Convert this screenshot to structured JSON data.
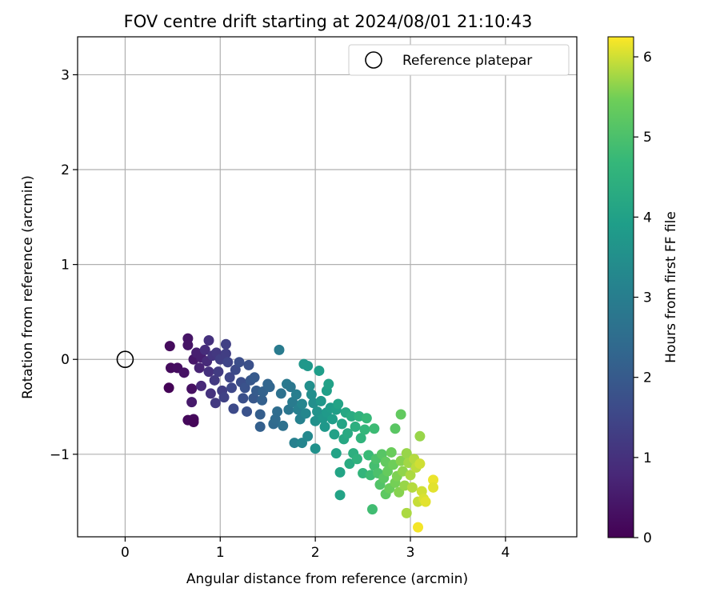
{
  "chart_data": {
    "type": "scatter",
    "title": "FOV centre drift starting at 2024/08/01 21:10:43",
    "xlabel": "Angular distance from reference (arcmin)",
    "ylabel": "Rotation from reference (arcmin)",
    "xlim": [
      -0.5,
      4.75
    ],
    "ylim": [
      -1.87,
      3.4
    ],
    "xticks": [
      0,
      1,
      2,
      3,
      4
    ],
    "xtick_labels": [
      "0",
      "1",
      "2",
      "3",
      "4"
    ],
    "yticks": [
      -1,
      0,
      1,
      2,
      3
    ],
    "ytick_labels": [
      "−1",
      "0",
      "1",
      "2",
      "3"
    ],
    "grid": true,
    "legend": {
      "placement": "top-right",
      "entries": [
        "Reference platepar"
      ]
    },
    "reference": {
      "label": "Reference platepar",
      "x": 0,
      "y": 0,
      "marker": "open-circle",
      "color": "#000000"
    },
    "colorbar": {
      "label": "Hours from first FF file",
      "range": [
        0,
        6.25
      ],
      "ticks": [
        0,
        1,
        2,
        3,
        4,
        5,
        6
      ],
      "tick_labels": [
        "0",
        "1",
        "2",
        "3",
        "4",
        "5",
        "6"
      ],
      "colormap": "viridis"
    },
    "series": [
      {
        "color_by": "hours",
        "points": [
          [
            0.46,
            -0.3,
            0.05
          ],
          [
            0.47,
            0.14,
            0.2
          ],
          [
            0.48,
            -0.09,
            0.2
          ],
          [
            0.55,
            -0.09,
            0.25
          ],
          [
            0.62,
            -0.14,
            0.35
          ],
          [
            0.66,
            0.22,
            0.4
          ],
          [
            0.66,
            0.15,
            0.4
          ],
          [
            0.66,
            -0.64,
            0.15
          ],
          [
            0.7,
            -0.31,
            0.3
          ],
          [
            0.72,
            0.0,
            0.45
          ],
          [
            0.72,
            -0.63,
            0.2
          ],
          [
            0.72,
            -0.66,
            0.1
          ],
          [
            0.7,
            -0.45,
            0.5
          ],
          [
            0.75,
            0.07,
            0.6
          ],
          [
            0.78,
            -0.09,
            0.7
          ],
          [
            0.8,
            -0.28,
            0.8
          ],
          [
            0.8,
            0.02,
            0.6
          ],
          [
            0.84,
            0.1,
            0.9
          ],
          [
            0.86,
            -0.02,
            0.85
          ],
          [
            0.88,
            -0.13,
            1.0
          ],
          [
            0.88,
            0.2,
            1.0
          ],
          [
            0.9,
            -0.36,
            1.05
          ],
          [
            0.92,
            0.04,
            1.1
          ],
          [
            0.94,
            -0.22,
            1.2
          ],
          [
            0.95,
            -0.46,
            1.2
          ],
          [
            0.96,
            0.07,
            1.15
          ],
          [
            0.98,
            -0.13,
            1.25
          ],
          [
            1.0,
            0.0,
            1.3
          ],
          [
            1.02,
            -0.33,
            1.3
          ],
          [
            1.04,
            -0.4,
            1.4
          ],
          [
            1.06,
            0.06,
            1.3
          ],
          [
            1.06,
            0.16,
            1.35
          ],
          [
            1.08,
            -0.03,
            1.45
          ],
          [
            1.1,
            -0.19,
            1.5
          ],
          [
            1.12,
            -0.3,
            1.55
          ],
          [
            1.14,
            -0.52,
            1.6
          ],
          [
            1.16,
            -0.11,
            1.6
          ],
          [
            1.2,
            -0.03,
            1.7
          ],
          [
            1.22,
            -0.24,
            1.7
          ],
          [
            1.24,
            -0.41,
            1.75
          ],
          [
            1.26,
            -0.3,
            1.8
          ],
          [
            1.28,
            -0.55,
            1.8
          ],
          [
            1.3,
            -0.06,
            1.75
          ],
          [
            1.32,
            -0.22,
            1.9
          ],
          [
            1.35,
            -0.41,
            1.95
          ],
          [
            1.36,
            -0.19,
            2.0
          ],
          [
            1.38,
            -0.33,
            2.05
          ],
          [
            1.42,
            -0.58,
            2.1
          ],
          [
            1.42,
            -0.71,
            2.15
          ],
          [
            1.44,
            -0.43,
            2.15
          ],
          [
            1.45,
            -0.34,
            2.2
          ],
          [
            1.5,
            -0.26,
            2.3
          ],
          [
            1.52,
            -0.29,
            2.3
          ],
          [
            1.56,
            -0.68,
            2.4
          ],
          [
            1.58,
            -0.63,
            2.45
          ],
          [
            1.6,
            -0.55,
            2.5
          ],
          [
            1.62,
            0.1,
            2.9
          ],
          [
            1.64,
            -0.36,
            2.6
          ],
          [
            1.66,
            -0.7,
            2.6
          ],
          [
            1.7,
            -0.26,
            2.85
          ],
          [
            1.72,
            -0.53,
            2.75
          ],
          [
            1.74,
            -0.29,
            2.8
          ],
          [
            1.76,
            -0.45,
            2.9
          ],
          [
            1.78,
            -0.88,
            3.05
          ],
          [
            1.8,
            -0.37,
            3.0
          ],
          [
            1.82,
            -0.53,
            3.05
          ],
          [
            1.84,
            -0.63,
            3.1
          ],
          [
            1.86,
            -0.88,
            3.2
          ],
          [
            1.86,
            -0.47,
            3.2
          ],
          [
            1.88,
            -0.05,
            3.7
          ],
          [
            1.9,
            -0.57,
            3.25
          ],
          [
            1.92,
            -0.81,
            3.3
          ],
          [
            1.92,
            -0.07,
            3.75
          ],
          [
            1.94,
            -0.28,
            3.5
          ],
          [
            1.96,
            -0.37,
            3.45
          ],
          [
            1.98,
            -0.46,
            3.5
          ],
          [
            2.0,
            -0.94,
            3.55
          ],
          [
            2.0,
            -0.65,
            3.55
          ],
          [
            2.02,
            -0.55,
            3.6
          ],
          [
            2.04,
            -0.12,
            3.9
          ],
          [
            2.06,
            -0.44,
            3.7
          ],
          [
            2.08,
            -0.62,
            3.7
          ],
          [
            2.1,
            -0.71,
            3.75
          ],
          [
            2.12,
            -0.33,
            3.95
          ],
          [
            2.12,
            -0.56,
            3.8
          ],
          [
            2.14,
            -0.26,
            4.0
          ],
          [
            2.16,
            -0.51,
            3.85
          ],
          [
            2.18,
            -0.63,
            3.9
          ],
          [
            2.2,
            -0.79,
            4.0
          ],
          [
            2.22,
            -0.99,
            4.05
          ],
          [
            2.22,
            -0.53,
            3.95
          ],
          [
            2.24,
            -0.47,
            4.05
          ],
          [
            2.26,
            -1.43,
            4.05
          ],
          [
            2.26,
            -1.19,
            4.1
          ],
          [
            2.28,
            -0.68,
            4.1
          ],
          [
            2.3,
            -0.84,
            4.2
          ],
          [
            2.32,
            -0.56,
            4.2
          ],
          [
            2.34,
            -0.78,
            4.25
          ],
          [
            2.36,
            -1.1,
            4.3
          ],
          [
            2.38,
            -0.6,
            4.3
          ],
          [
            2.4,
            -0.99,
            4.4
          ],
          [
            2.42,
            -0.71,
            4.4
          ],
          [
            2.44,
            -1.05,
            4.5
          ],
          [
            2.46,
            -0.6,
            4.5
          ],
          [
            2.48,
            -0.83,
            4.55
          ],
          [
            2.5,
            -1.2,
            4.6
          ],
          [
            2.52,
            -0.74,
            4.65
          ],
          [
            2.54,
            -0.62,
            4.7
          ],
          [
            2.56,
            -1.01,
            4.75
          ],
          [
            2.58,
            -1.22,
            4.8
          ],
          [
            2.6,
            -1.58,
            4.85
          ],
          [
            2.62,
            -0.73,
            4.8
          ],
          [
            2.62,
            -1.12,
            4.9
          ],
          [
            2.64,
            -1.05,
            5.0
          ],
          [
            2.66,
            -1.2,
            5.0
          ],
          [
            2.68,
            -1.32,
            5.1
          ],
          [
            2.7,
            -1.0,
            5.15
          ],
          [
            2.72,
            -1.25,
            5.2
          ],
          [
            2.74,
            -1.42,
            5.25
          ],
          [
            2.74,
            -1.08,
            5.3
          ],
          [
            2.76,
            -1.18,
            5.35
          ],
          [
            2.78,
            -1.36,
            5.4
          ],
          [
            2.8,
            -0.98,
            5.4
          ],
          [
            2.82,
            -1.11,
            5.45
          ],
          [
            2.84,
            -0.73,
            5.2
          ],
          [
            2.84,
            -1.3,
            5.5
          ],
          [
            2.86,
            -1.23,
            5.55
          ],
          [
            2.88,
            -1.4,
            5.6
          ],
          [
            2.9,
            -0.58,
            5.3
          ],
          [
            2.9,
            -1.07,
            5.6
          ],
          [
            2.92,
            -1.18,
            5.65
          ],
          [
            2.94,
            -1.33,
            5.7
          ],
          [
            2.96,
            -0.99,
            5.7
          ],
          [
            2.96,
            -1.62,
            5.8
          ],
          [
            2.98,
            -1.09,
            5.75
          ],
          [
            3.0,
            -1.22,
            5.8
          ],
          [
            3.02,
            -1.35,
            5.85
          ],
          [
            3.04,
            -1.05,
            5.85
          ],
          [
            3.06,
            -1.14,
            5.9
          ],
          [
            3.08,
            -1.5,
            5.95
          ],
          [
            3.08,
            -1.77,
            6.2
          ],
          [
            3.1,
            -0.81,
            5.7
          ],
          [
            3.1,
            -1.1,
            6.0
          ],
          [
            3.12,
            -1.39,
            6.0
          ],
          [
            3.14,
            -1.47,
            6.05
          ],
          [
            3.16,
            -1.5,
            6.1
          ],
          [
            3.24,
            -1.27,
            6.15
          ],
          [
            3.24,
            -1.35,
            6.1
          ]
        ]
      }
    ]
  }
}
